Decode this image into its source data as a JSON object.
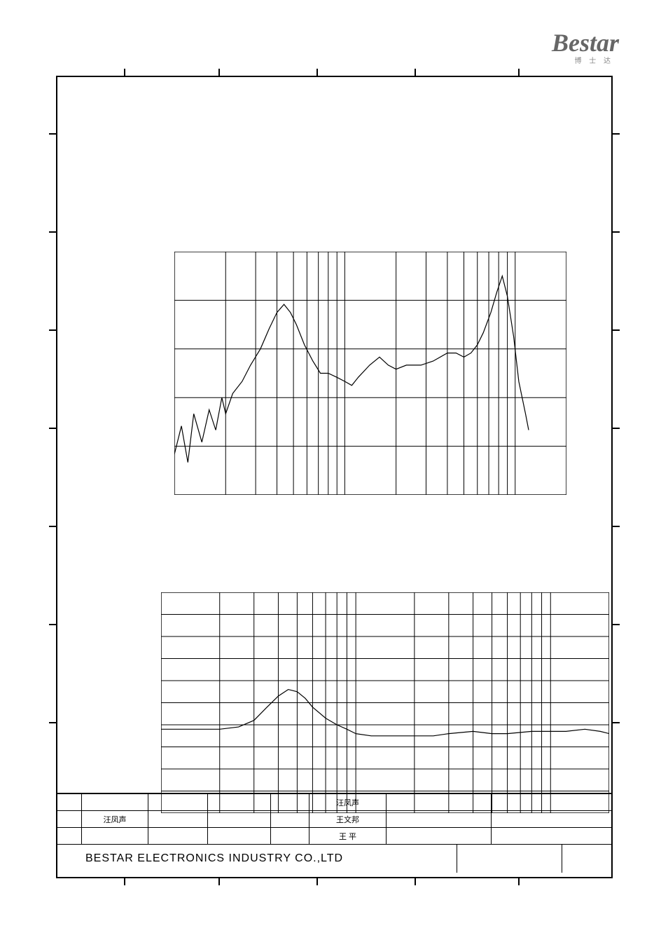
{
  "logo": {
    "text": "Bestar",
    "sub": "博 士 达"
  },
  "chart1": {
    "type": "line",
    "x_scale": "log",
    "x_decades": 2,
    "xlim": [
      100,
      20000
    ],
    "ylim": [
      50,
      110
    ],
    "h_divisions": 5,
    "grid_color": "#000000",
    "line_color": "#000000",
    "line_width": 1.2,
    "background_color": "#ffffff",
    "points": [
      [
        100,
        60
      ],
      [
        110,
        67
      ],
      [
        120,
        58
      ],
      [
        130,
        70
      ],
      [
        145,
        63
      ],
      [
        160,
        71
      ],
      [
        175,
        66
      ],
      [
        190,
        74
      ],
      [
        200,
        70
      ],
      [
        220,
        75
      ],
      [
        250,
        78
      ],
      [
        280,
        82
      ],
      [
        320,
        86
      ],
      [
        360,
        91
      ],
      [
        400,
        95
      ],
      [
        440,
        97
      ],
      [
        480,
        95
      ],
      [
        520,
        92
      ],
      [
        580,
        87
      ],
      [
        650,
        83
      ],
      [
        720,
        80
      ],
      [
        800,
        80
      ],
      [
        900,
        79
      ],
      [
        1000,
        78
      ],
      [
        1100,
        77
      ],
      [
        1200,
        79
      ],
      [
        1400,
        82
      ],
      [
        1600,
        84
      ],
      [
        1800,
        82
      ],
      [
        2000,
        81
      ],
      [
        2300,
        82
      ],
      [
        2800,
        82
      ],
      [
        3300,
        83
      ],
      [
        4000,
        85
      ],
      [
        4500,
        85
      ],
      [
        5000,
        84
      ],
      [
        5500,
        85
      ],
      [
        6000,
        87
      ],
      [
        6500,
        90
      ],
      [
        7200,
        95
      ],
      [
        7800,
        100
      ],
      [
        8400,
        104
      ],
      [
        9000,
        99
      ],
      [
        9800,
        89
      ],
      [
        10500,
        78
      ],
      [
        11500,
        70
      ],
      [
        12000,
        66
      ]
    ]
  },
  "chart2": {
    "type": "line",
    "x_scale": "log",
    "x_decades": 2,
    "xlim": [
      100,
      20000
    ],
    "ylim": [
      0,
      100
    ],
    "h_divisions": 10,
    "grid_color": "#000000",
    "line_color": "#000000",
    "line_width": 1.2,
    "background_color": "#ffffff",
    "points": [
      [
        100,
        38
      ],
      [
        150,
        38
      ],
      [
        200,
        38
      ],
      [
        250,
        39
      ],
      [
        300,
        42
      ],
      [
        350,
        48
      ],
      [
        400,
        53
      ],
      [
        450,
        56
      ],
      [
        500,
        55
      ],
      [
        550,
        52
      ],
      [
        600,
        48
      ],
      [
        700,
        43
      ],
      [
        800,
        40
      ],
      [
        900,
        38
      ],
      [
        1000,
        36
      ],
      [
        1200,
        35
      ],
      [
        1500,
        35
      ],
      [
        2000,
        35
      ],
      [
        2500,
        35
      ],
      [
        3000,
        36
      ],
      [
        4000,
        37
      ],
      [
        5000,
        36
      ],
      [
        6000,
        36
      ],
      [
        8000,
        37
      ],
      [
        10000,
        37
      ],
      [
        12000,
        37
      ],
      [
        15000,
        38
      ],
      [
        18000,
        37
      ],
      [
        20000,
        36
      ]
    ]
  },
  "title_block": {
    "rows": [
      {
        "c1": "",
        "c2": "",
        "c3": "",
        "c4": "",
        "c5": "汪凤声",
        "c6": ""
      },
      {
        "c1": "",
        "c2": "汪凤声",
        "c3": "",
        "c4": "",
        "c5": "王文邦",
        "c6": ""
      },
      {
        "c1": "",
        "c2": "",
        "c3": "",
        "c4": "",
        "c5": "王  平",
        "c6": ""
      }
    ],
    "company": "BESTAR  ELECTRONICS  INDUSTRY  CO.,LTD",
    "dwg_no": "",
    "rev": ""
  },
  "col_widths": {
    "c1": 35,
    "c2": 95,
    "c3": 85,
    "c4": 90,
    "c5": 55,
    "c5b": 110,
    "c6": 150
  }
}
